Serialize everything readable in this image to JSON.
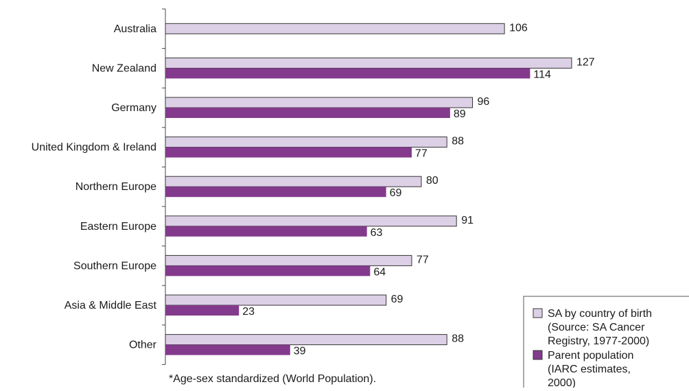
{
  "chart_data": {
    "type": "bar",
    "orientation": "horizontal",
    "categories": [
      "Australia",
      "New Zealand",
      "Germany",
      "United Kingdom & Ireland",
      "Northern Europe",
      "Eastern Europe",
      "Southern Europe",
      "Asia & Middle East",
      "Other"
    ],
    "series": [
      {
        "name": "SA by country of birth (Source: SA Cancer Registry, 1977-2000)",
        "legend_lines": [
          "SA by country of birth",
          "(Source: SA Cancer",
          "Registry, 1977-2000)"
        ],
        "color": "#dcd0e6",
        "values": [
          106,
          127,
          96,
          88,
          80,
          91,
          77,
          69,
          88
        ]
      },
      {
        "name": "Parent population (IARC estimates, 2000)",
        "legend_lines": [
          "Parent population",
          "(IARC estimates,",
          "2000)"
        ],
        "color": "#833a8c",
        "values": [
          null,
          114,
          89,
          77,
          69,
          63,
          64,
          23,
          39
        ]
      }
    ],
    "xlim": [
      0,
      140
    ],
    "grid": false,
    "legend_position": "bottom-right",
    "footnote": "*Age-sex standardized (World Population)."
  }
}
